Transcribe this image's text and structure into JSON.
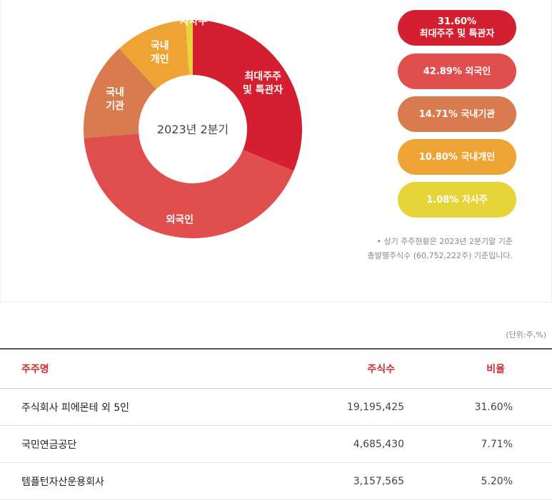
{
  "chart_data": {
    "type": "pie",
    "title": "2023년 2분기",
    "slices": [
      {
        "legend": "최대주주 및 특관자",
        "label_lines": [
          "최대주주",
          "및 특관자"
        ],
        "value": 31.6,
        "display": "31.60%",
        "color": "#d41f31"
      },
      {
        "legend": "외국인",
        "label_lines": [
          "외국인"
        ],
        "value": 42.89,
        "display": "42.89%",
        "color": "#e04e4e"
      },
      {
        "legend": "국내기관",
        "label_lines": [
          "국내",
          "기관"
        ],
        "value": 14.71,
        "display": "14.71%",
        "color": "#d87b4e"
      },
      {
        "legend": "국내개인",
        "label_lines": [
          "국내",
          "개인"
        ],
        "value": 10.8,
        "display": "10.80%",
        "color": "#eea435"
      },
      {
        "legend": "자사주",
        "label_lines": [
          "자사주"
        ],
        "value": 1.08,
        "display": "1.08%",
        "color": "#e6d43a"
      }
    ]
  },
  "legend_items": [
    {
      "line1": "31.60%",
      "line2": "최대주주 및 특관자"
    },
    {
      "line1": "42.89% 외국인",
      "line2": ""
    },
    {
      "line1": "14.71% 국내기관",
      "line2": ""
    },
    {
      "line1": "10.80% 국내개인",
      "line2": ""
    },
    {
      "line1": "1.08% 자사주",
      "line2": ""
    }
  ],
  "notes": {
    "line1": "• 상기 주주현황은 2023년 2분기말 기준",
    "line2": "총발행주식수 (60,752,222주) 기준입니다."
  },
  "unit": "(단위:주,%)",
  "table": {
    "headers": {
      "name": "주주명",
      "shares": "주식수",
      "ratio": "비율"
    },
    "rows": [
      {
        "name": "주식회사 피에몬테 외 5인",
        "shares": "19,195,425",
        "ratio": "31.60%"
      },
      {
        "name": "국민연금공단",
        "shares": "4,685,430",
        "ratio": "7.71%"
      },
      {
        "name": "템플턴자산운용회사",
        "shares": "3,157,565",
        "ratio": "5.20%"
      }
    ]
  }
}
